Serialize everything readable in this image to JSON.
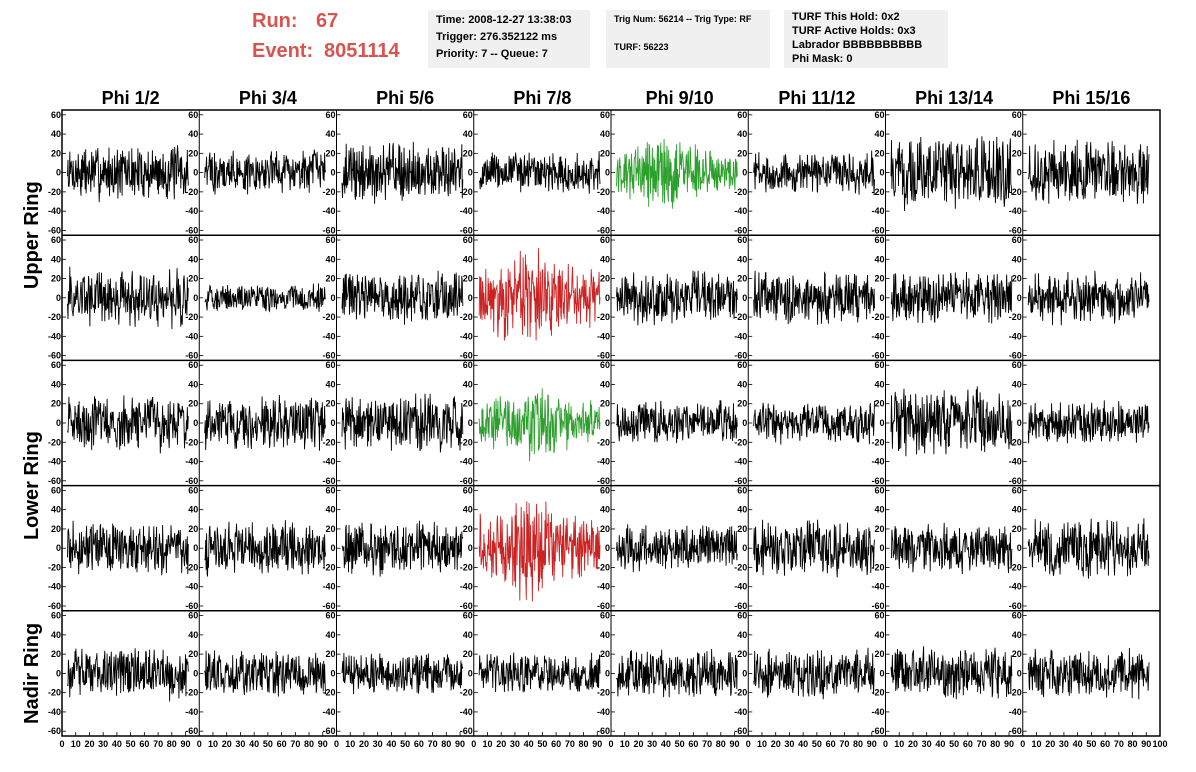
{
  "header": {
    "run_label": "Run:",
    "run_value": "67",
    "event_label": "Event:",
    "event_value": "8051114",
    "accent_color": "#d9534f"
  },
  "info_boxes": {
    "time": "Time: 2008-12-27 13:38:03",
    "trigger": "Trigger: 276.352122 ms",
    "priority": "Priority: 7 -- Queue: 7",
    "trig_num": "Trig Num: 56214 -- Trig Type: RF",
    "turf": "TURF: 56223",
    "turf_hold": "TURF This Hold: 0x2",
    "turf_active": "TURF Active Holds: 0x3",
    "labrador": "Labrador BBBBBBBBBB",
    "phi_mask": "Phi Mask: 0"
  },
  "chart_data": {
    "type": "line",
    "description_of_grid": "8 phi columns x 5 waveform rows",
    "columns": [
      "Phi 1/2",
      "Phi 3/4",
      "Phi 5/6",
      "Phi 7/8",
      "Phi 9/10",
      "Phi 11/12",
      "Phi 13/14",
      "Phi 15/16"
    ],
    "ring_labels": [
      "Upper Ring",
      "Lower Ring",
      "Nadir Ring"
    ],
    "ring_row_spans": [
      [
        0,
        1
      ],
      [
        2,
        3
      ],
      [
        4,
        4
      ]
    ],
    "ylim": [
      -65,
      65
    ],
    "yticks": [
      -60,
      -40,
      -20,
      0,
      20,
      40,
      60
    ],
    "xlim": [
      0,
      100
    ],
    "xticks": [
      0,
      10,
      20,
      30,
      40,
      50,
      60,
      70,
      80,
      90,
      100
    ],
    "colors": {
      "default": "#000000",
      "green": "#2ca02c",
      "red": "#cc2222"
    },
    "amplitudes": [
      [
        16,
        13,
        17,
        12,
        18,
        12,
        20,
        18
      ],
      [
        17,
        8,
        15,
        24,
        15,
        15,
        15,
        15
      ],
      [
        16,
        15,
        16,
        18,
        13,
        12,
        20,
        12
      ],
      [
        15,
        15,
        16,
        25,
        13,
        16,
        15,
        17
      ],
      [
        15,
        13,
        12,
        12,
        14,
        14,
        15,
        14
      ]
    ],
    "highlights": [
      {
        "row": 0,
        "col": 4,
        "color": "green"
      },
      {
        "row": 1,
        "col": 3,
        "color": "red"
      },
      {
        "row": 2,
        "col": 3,
        "color": "green"
      },
      {
        "row": 3,
        "col": 3,
        "color": "red"
      }
    ]
  }
}
